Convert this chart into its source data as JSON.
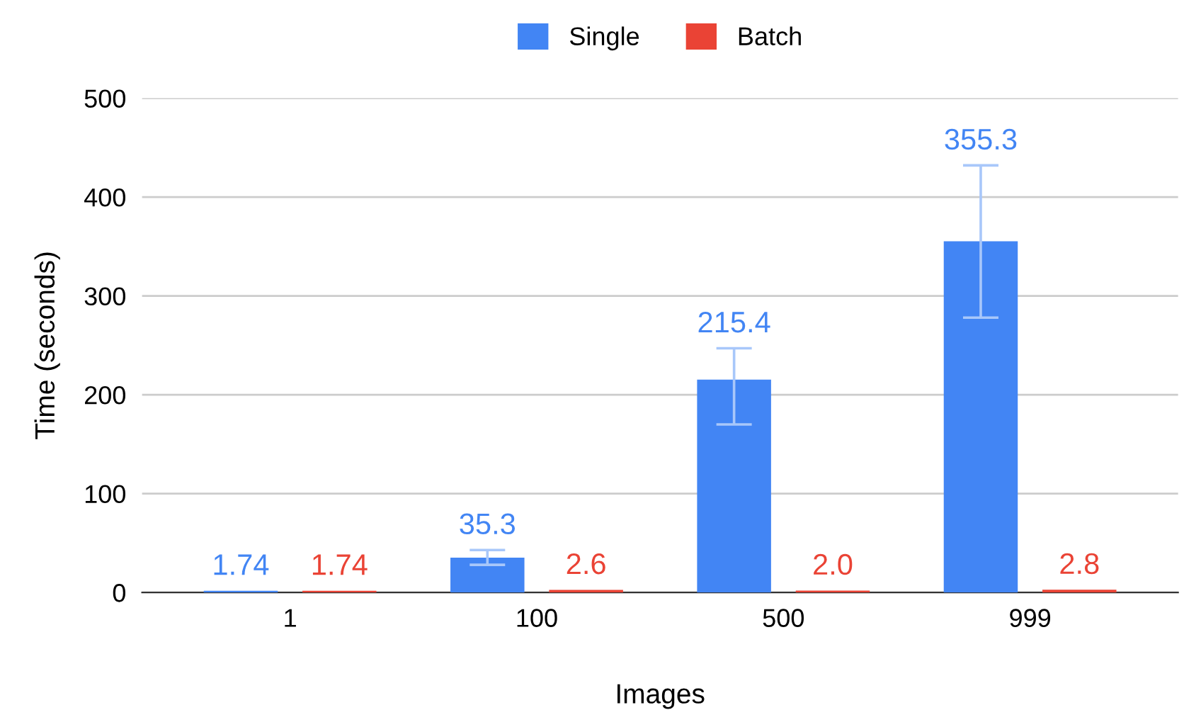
{
  "chart_data": {
    "type": "bar",
    "xlabel": "Images",
    "ylabel": "Time (seconds)",
    "categories": [
      "1",
      "100",
      "500",
      "999"
    ],
    "series": [
      {
        "name": "Single",
        "color": "#4285f4",
        "values": [
          1.74,
          35.3,
          215.4,
          355.3
        ],
        "errors": [
          null,
          [
            28,
            43
          ],
          [
            170,
            247
          ],
          [
            278,
            432
          ]
        ]
      },
      {
        "name": "Batch",
        "color": "#ea4335",
        "values": [
          1.74,
          2.6,
          2.0,
          2.8
        ],
        "value_labels": [
          "1.74",
          "2.6",
          "2.0",
          "2.8"
        ]
      }
    ],
    "ylim": [
      0,
      500
    ],
    "yticks": [
      0,
      100,
      200,
      300,
      400,
      500
    ],
    "grid": "y",
    "legend": "top",
    "data_labels": true
  }
}
